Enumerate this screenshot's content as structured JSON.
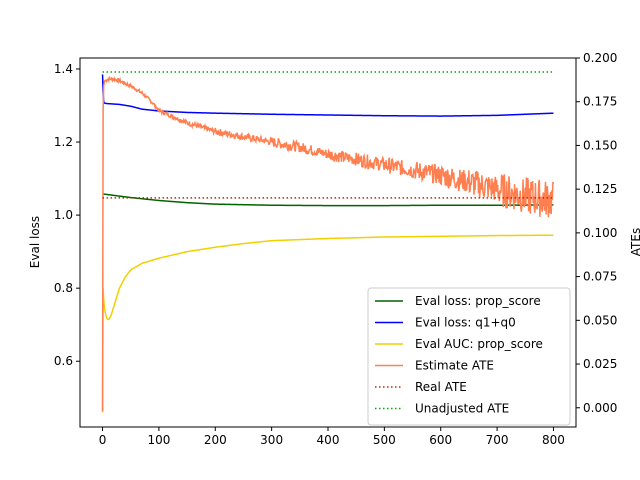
{
  "chart_data": {
    "type": "line",
    "title": "",
    "xlabel": "",
    "ylabel_left": "Eval loss",
    "ylabel_right": "ATEs",
    "xlim": [
      -40,
      840
    ],
    "ylim_left": [
      0.42,
      1.43
    ],
    "ylim_right": [
      -0.011,
      0.2
    ],
    "xticks": [
      0,
      100,
      200,
      300,
      400,
      500,
      600,
      700,
      800
    ],
    "yticks_left": [
      0.6,
      0.8,
      1.0,
      1.2,
      1.4
    ],
    "yticks_left_labels": [
      "0.6",
      "0.8",
      "1.0",
      "1.2",
      "1.4"
    ],
    "yticks_right": [
      0.0,
      0.025,
      0.05,
      0.075,
      0.1,
      0.125,
      0.15,
      0.175,
      0.2
    ],
    "yticks_right_labels": [
      "0.000",
      "0.025",
      "0.050",
      "0.075",
      "0.100",
      "0.125",
      "0.150",
      "0.175",
      "0.200"
    ],
    "grid": false,
    "legend_position": "bottom-right",
    "series": [
      {
        "name": "Eval loss: prop_score",
        "axis": "left",
        "color": "#006400",
        "style": "solid",
        "x": [
          0,
          20,
          50,
          100,
          150,
          200,
          300,
          400,
          500,
          600,
          700,
          800
        ],
        "y": [
          1.058,
          1.054,
          1.048,
          1.04,
          1.034,
          1.03,
          1.027,
          1.026,
          1.026,
          1.027,
          1.027,
          1.028
        ]
      },
      {
        "name": "Eval loss: q1+q0",
        "axis": "left",
        "color": "#0000ff",
        "style": "solid",
        "x": [
          0,
          1,
          2,
          3,
          5,
          10,
          30,
          50,
          70,
          100,
          150,
          200,
          300,
          400,
          500,
          600,
          700,
          750,
          800
        ],
        "y": [
          1.385,
          1.34,
          1.31,
          1.307,
          1.306,
          1.305,
          1.303,
          1.298,
          1.29,
          1.285,
          1.281,
          1.279,
          1.276,
          1.274,
          1.272,
          1.271,
          1.273,
          1.276,
          1.279
        ]
      },
      {
        "name": "Eval AUC: prop_score",
        "axis": "left",
        "color": "#f0d000",
        "style": "solid",
        "x": [
          0,
          1,
          2,
          4,
          6,
          8,
          10,
          12,
          15,
          20,
          30,
          40,
          50,
          70,
          100,
          150,
          200,
          250,
          300,
          400,
          500,
          600,
          700,
          800
        ],
        "y": [
          0.46,
          0.8,
          0.77,
          0.74,
          0.725,
          0.717,
          0.714,
          0.716,
          0.725,
          0.75,
          0.8,
          0.83,
          0.85,
          0.868,
          0.882,
          0.9,
          0.912,
          0.922,
          0.93,
          0.936,
          0.94,
          0.942,
          0.944,
          0.945
        ]
      },
      {
        "name": "Estimate ATE",
        "axis": "right",
        "color": "#ff7f50",
        "style": "solid",
        "noisy": true,
        "x": [
          0,
          1,
          2,
          3,
          4,
          5,
          10,
          20,
          30,
          50,
          70,
          90,
          100,
          150,
          200,
          250,
          300,
          350,
          400,
          450,
          500,
          550,
          600,
          650,
          700,
          750,
          800
        ],
        "y": [
          -0.002,
          0.17,
          0.184,
          0.186,
          0.187,
          0.187,
          0.188,
          0.188,
          0.187,
          0.184,
          0.18,
          0.174,
          0.17,
          0.163,
          0.158,
          0.155,
          0.152,
          0.149,
          0.145,
          0.142,
          0.139,
          0.136,
          0.133,
          0.129,
          0.125,
          0.121,
          0.119
        ],
        "noise_amplitude": [
          0.001,
          0.001,
          0.0012,
          0.0015,
          0.002,
          0.002,
          0.003,
          0.003,
          0.0035,
          0.004,
          0.0045,
          0.0055,
          0.0065,
          0.008,
          0.01,
          0.011,
          0.012
        ]
      },
      {
        "name": "Real ATE",
        "axis": "right",
        "color": "#cc2200",
        "style": "dotted",
        "x": [
          0,
          800
        ],
        "y": [
          0.12,
          0.12
        ]
      },
      {
        "name": "Unadjusted ATE",
        "axis": "right",
        "color": "#00aa00",
        "style": "dotted",
        "x": [
          0,
          800
        ],
        "y": [
          0.192,
          0.192
        ]
      }
    ]
  }
}
